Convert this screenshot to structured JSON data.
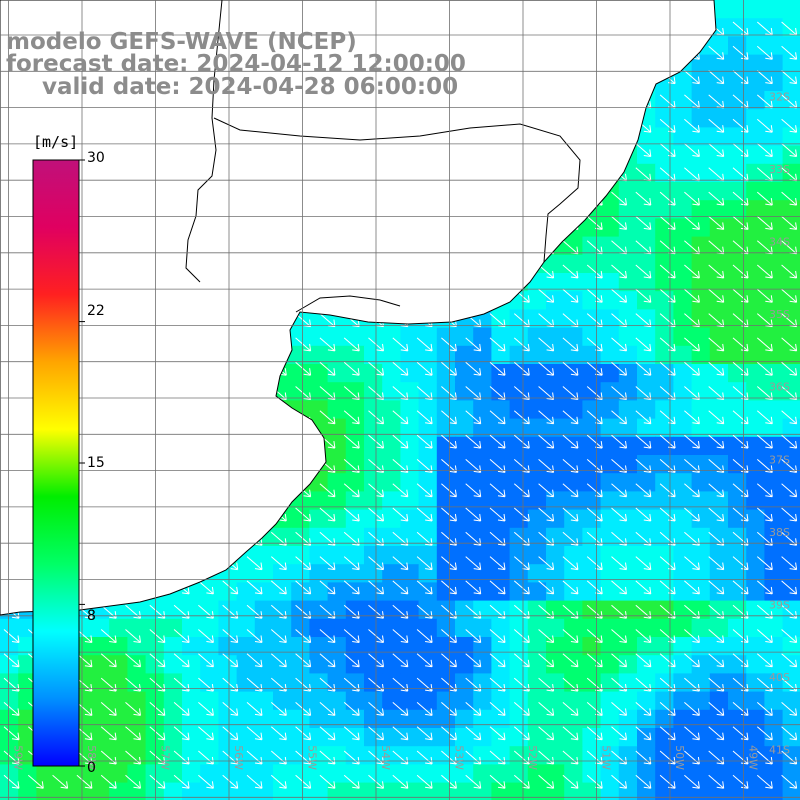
{
  "title": {
    "model": "modelo GEFS-WAVE (NCEP)",
    "forecast_date": "forecast date: 2024-04-12 12:00:00",
    "valid_date": "valid date: 2024-04-28 06:00:00"
  },
  "colorbar": {
    "unit": "[m/s]",
    "min": 0,
    "max": 30,
    "ticks": [
      {
        "value": 30,
        "label": "30"
      },
      {
        "value": 22,
        "label": "22"
      },
      {
        "value": 15,
        "label": "15"
      },
      {
        "value": 8,
        "label": "8"
      },
      {
        "value": 0,
        "label": "0"
      }
    ],
    "stops": [
      "#0000ff",
      "#0090ff",
      "#00ffff",
      "#00ff66",
      "#00ee00",
      "#ffff00",
      "#ffa500",
      "#ff2020",
      "#e00060",
      "#c0107a"
    ]
  },
  "map": {
    "latitude_labels": [
      "32S",
      "33S",
      "34S",
      "35S",
      "36S",
      "37S",
      "38S",
      "39S",
      "40S",
      "41S"
    ],
    "longitude_labels": [
      "59W",
      "58W",
      "57W",
      "56W",
      "55W",
      "54W",
      "53W",
      "52W",
      "51W",
      "50W",
      "49W"
    ],
    "wind_direction": "from north-west (arrows point south-east)"
  }
}
